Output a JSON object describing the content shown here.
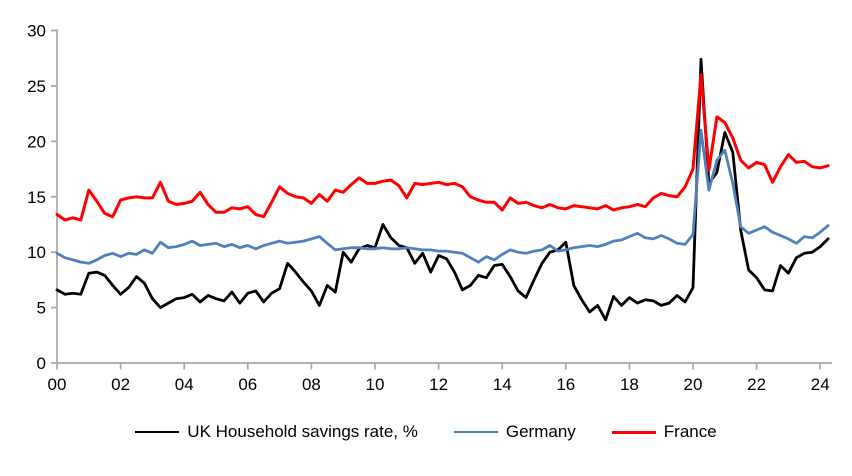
{
  "axes": {
    "color": "#a6a6a6",
    "tick_label_color": "#000000"
  },
  "chart_data": {
    "type": "line",
    "title": "",
    "xlabel": "",
    "ylabel": "",
    "grid": false,
    "legend_position": "bottom",
    "ylim": [
      0,
      30
    ],
    "y_ticks": [
      0,
      5,
      10,
      15,
      20,
      25,
      30
    ],
    "x_tick_labels": [
      "00",
      "02",
      "04",
      "06",
      "08",
      "10",
      "12",
      "14",
      "16",
      "18",
      "20",
      "22",
      "24"
    ],
    "x_start": 2000.0,
    "x_step_quarters": 0.25,
    "x_end": 2024.25,
    "series": [
      {
        "name": "UK Household savings rate, %",
        "color": "#000000",
        "width": 2.8,
        "values": [
          6.6,
          6.2,
          6.3,
          6.2,
          8.1,
          8.2,
          7.9,
          7.0,
          6.2,
          6.8,
          7.8,
          7.2,
          5.8,
          5.0,
          5.4,
          5.8,
          5.9,
          6.2,
          5.5,
          6.1,
          5.8,
          5.6,
          6.4,
          5.4,
          6.3,
          6.5,
          5.5,
          6.3,
          6.7,
          9.0,
          8.2,
          7.3,
          6.5,
          5.2,
          7.0,
          6.4,
          10.0,
          9.1,
          10.3,
          10.6,
          10.4,
          12.5,
          11.3,
          10.6,
          10.4,
          9.0,
          9.9,
          8.2,
          9.7,
          9.4,
          8.2,
          6.6,
          7.0,
          7.9,
          7.7,
          8.8,
          8.9,
          7.8,
          6.5,
          5.9,
          7.5,
          9.0,
          10.0,
          10.2,
          10.9,
          7.0,
          5.7,
          4.6,
          5.2,
          3.9,
          6.0,
          5.2,
          5.9,
          5.4,
          5.7,
          5.6,
          5.2,
          5.4,
          6.1,
          5.5,
          6.8,
          27.4,
          16.2,
          17.2,
          20.8,
          19.0,
          12.0,
          8.4,
          7.7,
          6.6,
          6.5,
          8.8,
          8.1,
          9.5,
          9.9,
          10.0,
          10.5,
          11.2
        ]
      },
      {
        "name": "Germany",
        "color": "#4f81bd",
        "width": 2.8,
        "values": [
          9.9,
          9.5,
          9.3,
          9.1,
          9.0,
          9.3,
          9.7,
          9.9,
          9.6,
          9.9,
          9.8,
          10.2,
          9.9,
          10.9,
          10.4,
          10.5,
          10.7,
          11.0,
          10.6,
          10.7,
          10.8,
          10.5,
          10.7,
          10.4,
          10.6,
          10.3,
          10.6,
          10.8,
          11.0,
          10.8,
          10.9,
          11.0,
          11.2,
          11.4,
          10.8,
          10.2,
          10.3,
          10.4,
          10.4,
          10.3,
          10.3,
          10.4,
          10.3,
          10.3,
          10.4,
          10.3,
          10.2,
          10.2,
          10.1,
          10.1,
          10.0,
          9.9,
          9.5,
          9.1,
          9.6,
          9.3,
          9.8,
          10.2,
          10.0,
          9.9,
          10.1,
          10.2,
          10.6,
          10.1,
          10.2,
          10.4,
          10.5,
          10.6,
          10.5,
          10.7,
          11.0,
          11.1,
          11.4,
          11.7,
          11.3,
          11.2,
          11.5,
          11.2,
          10.8,
          10.7,
          11.6,
          21.0,
          15.6,
          18.3,
          19.2,
          16.2,
          12.3,
          11.7,
          12.0,
          12.3,
          11.8,
          11.5,
          11.2,
          10.8,
          11.4,
          11.3,
          11.8,
          12.4
        ]
      },
      {
        "name": "France",
        "color": "#ff0000",
        "width": 3.0,
        "values": [
          13.4,
          12.9,
          13.1,
          12.9,
          15.6,
          14.6,
          13.5,
          13.2,
          14.7,
          14.9,
          15.0,
          14.9,
          14.9,
          16.3,
          14.6,
          14.3,
          14.4,
          14.6,
          15.4,
          14.3,
          13.6,
          13.6,
          14.0,
          13.9,
          14.1,
          13.4,
          13.2,
          14.5,
          15.9,
          15.3,
          15.0,
          14.9,
          14.4,
          15.2,
          14.6,
          15.6,
          15.4,
          16.1,
          16.7,
          16.2,
          16.2,
          16.4,
          16.5,
          16.0,
          14.9,
          16.2,
          16.1,
          16.2,
          16.3,
          16.1,
          16.2,
          15.9,
          15.0,
          14.7,
          14.5,
          14.5,
          13.8,
          14.9,
          14.4,
          14.5,
          14.2,
          14.0,
          14.3,
          14.0,
          13.9,
          14.2,
          14.1,
          14.0,
          13.9,
          14.2,
          13.8,
          14.0,
          14.1,
          14.3,
          14.1,
          14.9,
          15.3,
          15.1,
          15.0,
          15.9,
          17.5,
          26.0,
          17.4,
          22.2,
          21.7,
          20.3,
          18.3,
          17.6,
          18.1,
          17.9,
          16.3,
          17.7,
          18.8,
          18.1,
          18.2,
          17.7,
          17.6,
          17.8
        ]
      }
    ]
  },
  "legend": {
    "items": [
      {
        "label": "UK Household savings rate, %"
      },
      {
        "label": "Germany"
      },
      {
        "label": "France"
      }
    ]
  }
}
